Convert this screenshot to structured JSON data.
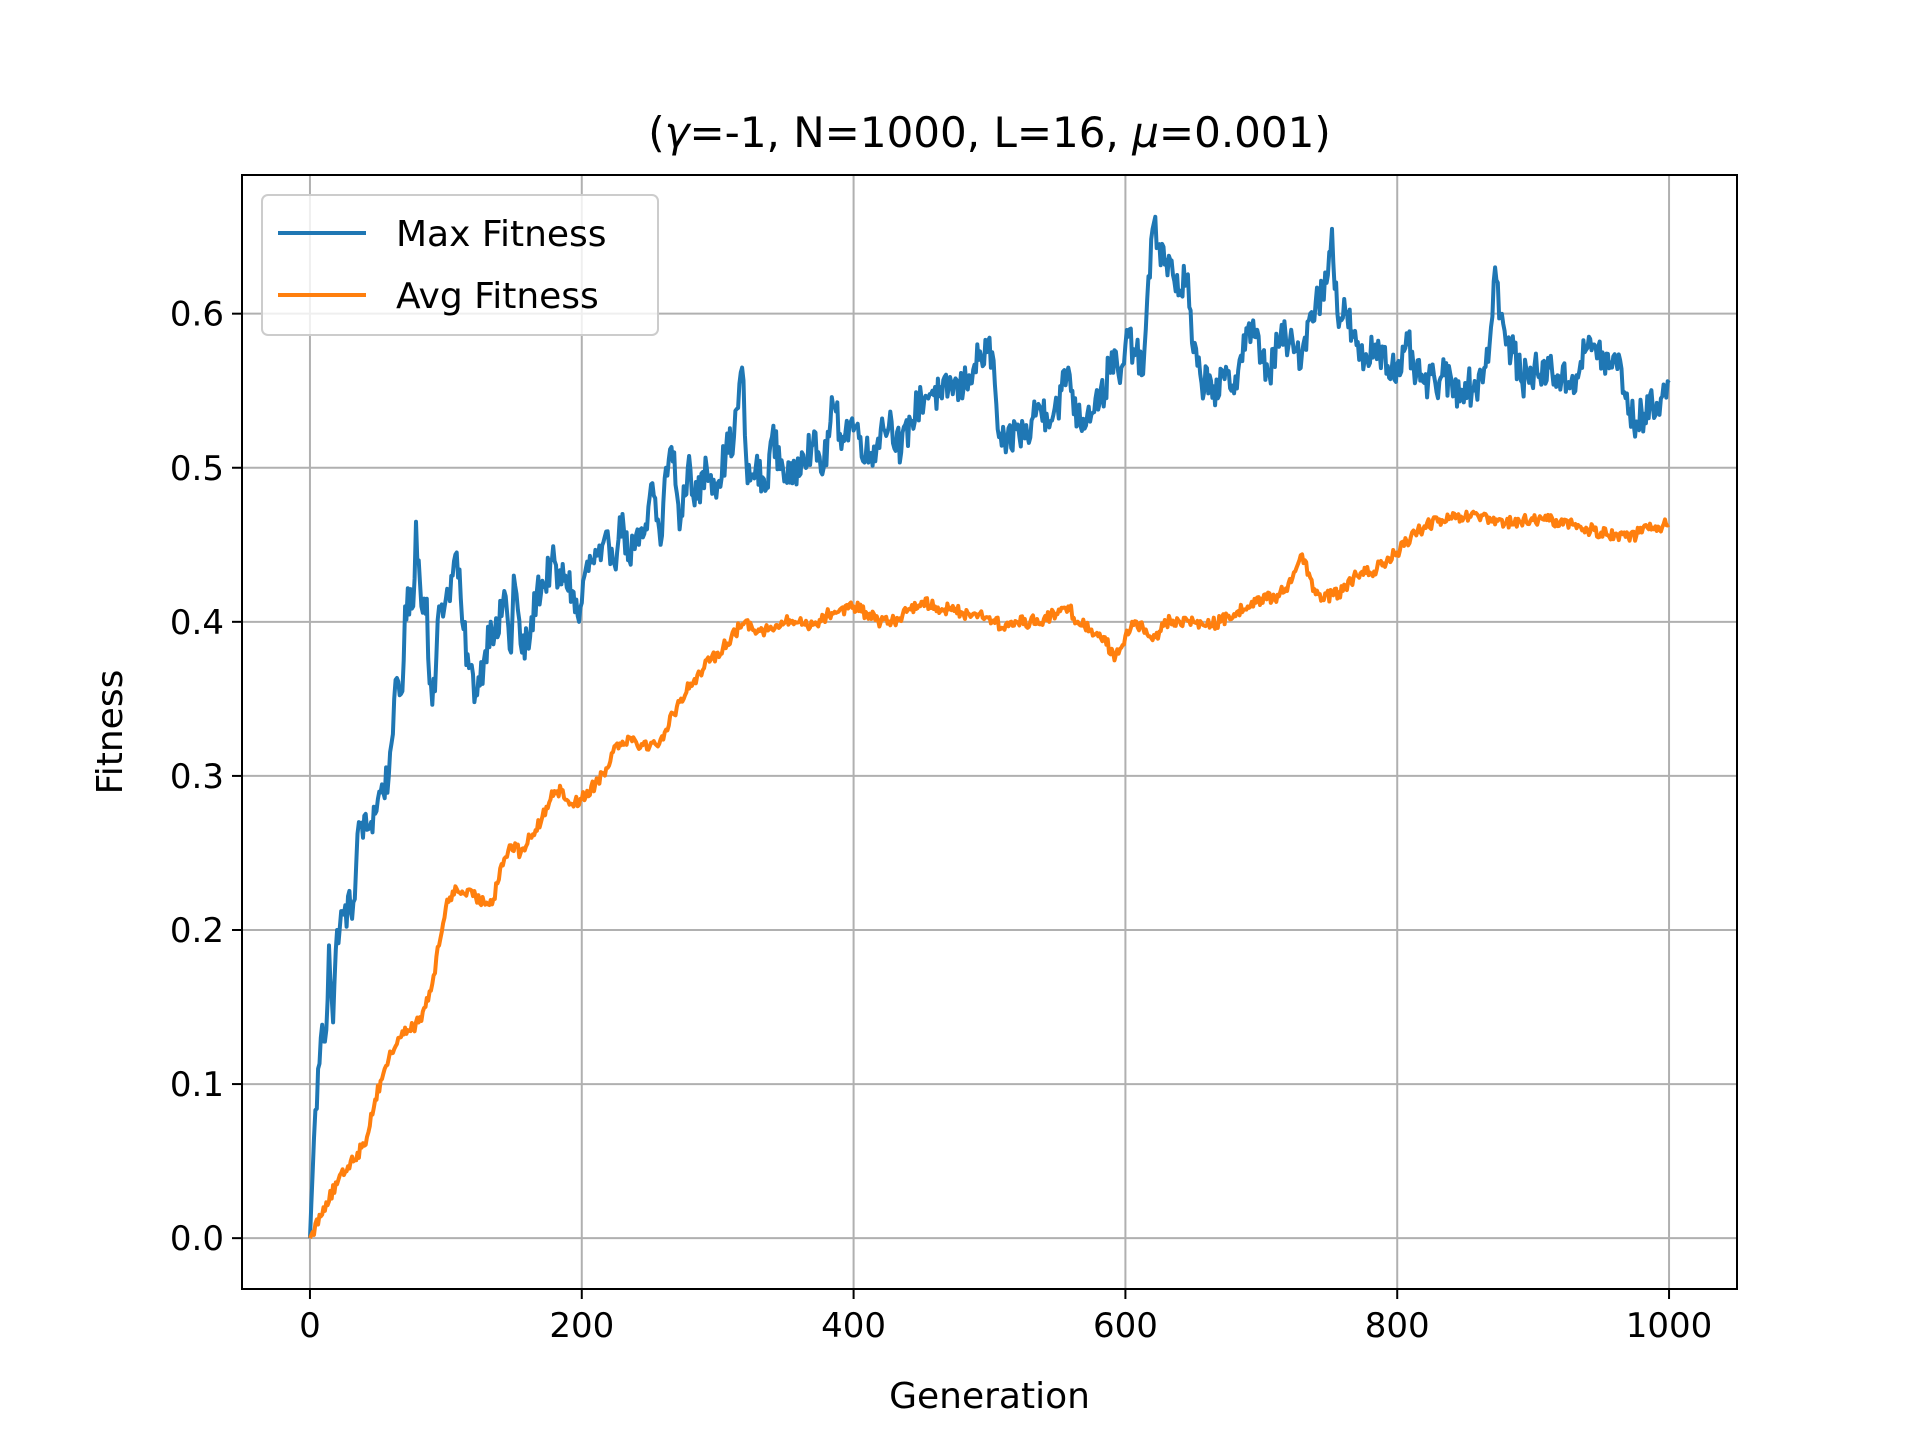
{
  "chart_data": {
    "type": "line",
    "title_parts": [
      "(",
      "γ",
      "=-1, N=1000, L=16, ",
      "μ",
      "=0.001)"
    ],
    "xlabel": "Generation",
    "ylabel": "Fitness",
    "xlim": [
      -50,
      1050
    ],
    "ylim": [
      -0.033,
      0.69
    ],
    "xticks": [
      0,
      200,
      400,
      600,
      800,
      1000
    ],
    "xtick_labels": [
      "0",
      "200",
      "400",
      "600",
      "800",
      "1000"
    ],
    "yticks": [
      0.0,
      0.1,
      0.2,
      0.3,
      0.4,
      0.5,
      0.6
    ],
    "ytick_labels": [
      "0.0",
      "0.1",
      "0.2",
      "0.3",
      "0.4",
      "0.5",
      "0.6"
    ],
    "grid": true,
    "legend_position": "top-left",
    "series": [
      {
        "name": "Max Fitness",
        "color": "#1f77b4",
        "anchors": [
          [
            0,
            0.0
          ],
          [
            3,
            0.065
          ],
          [
            8,
            0.13
          ],
          [
            12,
            0.135
          ],
          [
            14,
            0.19
          ],
          [
            17,
            0.14
          ],
          [
            20,
            0.2
          ],
          [
            25,
            0.21
          ],
          [
            33,
            0.22
          ],
          [
            36,
            0.27
          ],
          [
            42,
            0.265
          ],
          [
            45,
            0.27
          ],
          [
            50,
            0.285
          ],
          [
            58,
            0.3
          ],
          [
            62,
            0.35
          ],
          [
            68,
            0.355
          ],
          [
            70,
            0.41
          ],
          [
            76,
            0.41
          ],
          [
            78,
            0.465
          ],
          [
            82,
            0.41
          ],
          [
            86,
            0.415
          ],
          [
            88,
            0.36
          ],
          [
            92,
            0.355
          ],
          [
            95,
            0.41
          ],
          [
            100,
            0.415
          ],
          [
            105,
            0.43
          ],
          [
            108,
            0.445
          ],
          [
            112,
            0.4
          ],
          [
            117,
            0.37
          ],
          [
            122,
            0.355
          ],
          [
            128,
            0.375
          ],
          [
            133,
            0.4
          ],
          [
            138,
            0.39
          ],
          [
            143,
            0.42
          ],
          [
            148,
            0.38
          ],
          [
            150,
            0.43
          ],
          [
            156,
            0.38
          ],
          [
            162,
            0.39
          ],
          [
            167,
            0.42
          ],
          [
            173,
            0.425
          ],
          [
            178,
            0.44
          ],
          [
            183,
            0.425
          ],
          [
            188,
            0.43
          ],
          [
            193,
            0.42
          ],
          [
            198,
            0.4
          ],
          [
            202,
            0.43
          ],
          [
            208,
            0.44
          ],
          [
            214,
            0.44
          ],
          [
            220,
            0.45
          ],
          [
            226,
            0.445
          ],
          [
            230,
            0.47
          ],
          [
            234,
            0.44
          ],
          [
            238,
            0.45
          ],
          [
            242,
            0.45
          ],
          [
            248,
            0.46
          ],
          [
            252,
            0.49
          ],
          [
            258,
            0.45
          ],
          [
            262,
            0.5
          ],
          [
            268,
            0.51
          ],
          [
            272,
            0.46
          ],
          [
            278,
            0.5
          ],
          [
            285,
            0.48
          ],
          [
            292,
            0.5
          ],
          [
            300,
            0.49
          ],
          [
            306,
            0.51
          ],
          [
            312,
            0.52
          ],
          [
            318,
            0.565
          ],
          [
            322,
            0.49
          ],
          [
            328,
            0.5
          ],
          [
            335,
            0.485
          ],
          [
            340,
            0.52
          ],
          [
            348,
            0.5
          ],
          [
            355,
            0.49
          ],
          [
            362,
            0.51
          ],
          [
            370,
            0.515
          ],
          [
            378,
            0.5
          ],
          [
            385,
            0.54
          ],
          [
            392,
            0.52
          ],
          [
            398,
            0.53
          ],
          [
            405,
            0.52
          ],
          [
            412,
            0.505
          ],
          [
            420,
            0.525
          ],
          [
            428,
            0.53
          ],
          [
            435,
            0.51
          ],
          [
            442,
            0.53
          ],
          [
            450,
            0.545
          ],
          [
            458,
            0.55
          ],
          [
            465,
            0.545
          ],
          [
            472,
            0.555
          ],
          [
            478,
            0.55
          ],
          [
            485,
            0.56
          ],
          [
            492,
            0.57
          ],
          [
            498,
            0.575
          ],
          [
            502,
            0.575
          ],
          [
            506,
            0.525
          ],
          [
            512,
            0.51
          ],
          [
            520,
            0.525
          ],
          [
            528,
            0.52
          ],
          [
            535,
            0.54
          ],
          [
            542,
            0.535
          ],
          [
            550,
            0.54
          ],
          [
            558,
            0.565
          ],
          [
            565,
            0.53
          ],
          [
            572,
            0.535
          ],
          [
            578,
            0.545
          ],
          [
            585,
            0.55
          ],
          [
            590,
            0.575
          ],
          [
            596,
            0.555
          ],
          [
            602,
            0.585
          ],
          [
            608,
            0.575
          ],
          [
            612,
            0.56
          ],
          [
            615,
            0.59
          ],
          [
            620,
            0.655
          ],
          [
            625,
            0.645
          ],
          [
            630,
            0.635
          ],
          [
            635,
            0.625
          ],
          [
            640,
            0.615
          ],
          [
            645,
            0.625
          ],
          [
            650,
            0.575
          ],
          [
            656,
            0.555
          ],
          [
            662,
            0.56
          ],
          [
            668,
            0.545
          ],
          [
            672,
            0.56
          ],
          [
            678,
            0.55
          ],
          [
            684,
            0.57
          ],
          [
            690,
            0.59
          ],
          [
            695,
            0.585
          ],
          [
            700,
            0.575
          ],
          [
            706,
            0.56
          ],
          [
            712,
            0.58
          ],
          [
            718,
            0.585
          ],
          [
            724,
            0.575
          ],
          [
            730,
            0.575
          ],
          [
            736,
            0.6
          ],
          [
            742,
            0.61
          ],
          [
            748,
            0.62
          ],
          [
            752,
            0.655
          ],
          [
            756,
            0.6
          ],
          [
            762,
            0.6
          ],
          [
            768,
            0.585
          ],
          [
            772,
            0.57
          ],
          [
            778,
            0.57
          ],
          [
            784,
            0.58
          ],
          [
            790,
            0.575
          ],
          [
            796,
            0.565
          ],
          [
            802,
            0.56
          ],
          [
            808,
            0.58
          ],
          [
            814,
            0.56
          ],
          [
            820,
            0.555
          ],
          [
            828,
            0.555
          ],
          [
            835,
            0.56
          ],
          [
            842,
            0.55
          ],
          [
            850,
            0.555
          ],
          [
            856,
            0.55
          ],
          [
            862,
            0.56
          ],
          [
            868,
            0.58
          ],
          [
            872,
            0.63
          ],
          [
            876,
            0.6
          ],
          [
            880,
            0.58
          ],
          [
            886,
            0.575
          ],
          [
            892,
            0.555
          ],
          [
            898,
            0.565
          ],
          [
            905,
            0.56
          ],
          [
            912,
            0.565
          ],
          [
            918,
            0.56
          ],
          [
            925,
            0.555
          ],
          [
            932,
            0.56
          ],
          [
            938,
            0.575
          ],
          [
            945,
            0.58
          ],
          [
            952,
            0.57
          ],
          [
            958,
            0.565
          ],
          [
            964,
            0.57
          ],
          [
            970,
            0.535
          ],
          [
            976,
            0.53
          ],
          [
            982,
            0.535
          ],
          [
            988,
            0.54
          ],
          [
            994,
            0.545
          ],
          [
            1000,
            0.555
          ]
        ],
        "noise": 0.012
      },
      {
        "name": "Avg Fitness",
        "color": "#ff7f0e",
        "anchors": [
          [
            0,
            0.0
          ],
          [
            10,
            0.02
          ],
          [
            20,
            0.035
          ],
          [
            30,
            0.05
          ],
          [
            40,
            0.06
          ],
          [
            48,
            0.09
          ],
          [
            55,
            0.11
          ],
          [
            60,
            0.12
          ],
          [
            65,
            0.13
          ],
          [
            72,
            0.135
          ],
          [
            80,
            0.14
          ],
          [
            85,
            0.15
          ],
          [
            90,
            0.165
          ],
          [
            95,
            0.19
          ],
          [
            100,
            0.215
          ],
          [
            105,
            0.225
          ],
          [
            112,
            0.225
          ],
          [
            120,
            0.222
          ],
          [
            128,
            0.218
          ],
          [
            135,
            0.22
          ],
          [
            140,
            0.24
          ],
          [
            148,
            0.255
          ],
          [
            155,
            0.25
          ],
          [
            162,
            0.26
          ],
          [
            170,
            0.27
          ],
          [
            178,
            0.29
          ],
          [
            185,
            0.29
          ],
          [
            192,
            0.282
          ],
          [
            200,
            0.285
          ],
          [
            210,
            0.295
          ],
          [
            218,
            0.305
          ],
          [
            225,
            0.32
          ],
          [
            235,
            0.325
          ],
          [
            245,
            0.32
          ],
          [
            255,
            0.32
          ],
          [
            262,
            0.33
          ],
          [
            270,
            0.345
          ],
          [
            280,
            0.36
          ],
          [
            290,
            0.37
          ],
          [
            300,
            0.38
          ],
          [
            310,
            0.39
          ],
          [
            320,
            0.4
          ],
          [
            330,
            0.395
          ],
          [
            340,
            0.395
          ],
          [
            350,
            0.4
          ],
          [
            360,
            0.4
          ],
          [
            370,
            0.398
          ],
          [
            380,
            0.404
          ],
          [
            390,
            0.408
          ],
          [
            400,
            0.41
          ],
          [
            410,
            0.405
          ],
          [
            420,
            0.4
          ],
          [
            430,
            0.4
          ],
          [
            440,
            0.408
          ],
          [
            450,
            0.413
          ],
          [
            460,
            0.41
          ],
          [
            470,
            0.408
          ],
          [
            480,
            0.406
          ],
          [
            490,
            0.405
          ],
          [
            500,
            0.403
          ],
          [
            510,
            0.396
          ],
          [
            520,
            0.4
          ],
          [
            530,
            0.4
          ],
          [
            540,
            0.402
          ],
          [
            550,
            0.405
          ],
          [
            558,
            0.41
          ],
          [
            565,
            0.4
          ],
          [
            575,
            0.395
          ],
          [
            585,
            0.39
          ],
          [
            592,
            0.375
          ],
          [
            598,
            0.385
          ],
          [
            605,
            0.4
          ],
          [
            615,
            0.395
          ],
          [
            622,
            0.39
          ],
          [
            630,
            0.4
          ],
          [
            640,
            0.4
          ],
          [
            650,
            0.4
          ],
          [
            660,
            0.398
          ],
          [
            670,
            0.4
          ],
          [
            680,
            0.405
          ],
          [
            690,
            0.41
          ],
          [
            700,
            0.415
          ],
          [
            710,
            0.415
          ],
          [
            720,
            0.425
          ],
          [
            728,
            0.44
          ],
          [
            732,
            0.44
          ],
          [
            738,
            0.42
          ],
          [
            745,
            0.415
          ],
          [
            752,
            0.418
          ],
          [
            760,
            0.42
          ],
          [
            770,
            0.43
          ],
          [
            780,
            0.432
          ],
          [
            790,
            0.438
          ],
          [
            800,
            0.445
          ],
          [
            810,
            0.455
          ],
          [
            820,
            0.462
          ],
          [
            830,
            0.465
          ],
          [
            840,
            0.467
          ],
          [
            850,
            0.468
          ],
          [
            860,
            0.468
          ],
          [
            870,
            0.465
          ],
          [
            880,
            0.464
          ],
          [
            890,
            0.465
          ],
          [
            900,
            0.466
          ],
          [
            910,
            0.466
          ],
          [
            920,
            0.465
          ],
          [
            930,
            0.463
          ],
          [
            940,
            0.46
          ],
          [
            950,
            0.458
          ],
          [
            960,
            0.457
          ],
          [
            970,
            0.455
          ],
          [
            980,
            0.458
          ],
          [
            990,
            0.462
          ],
          [
            1000,
            0.463
          ]
        ],
        "noise": 0.004
      }
    ]
  }
}
